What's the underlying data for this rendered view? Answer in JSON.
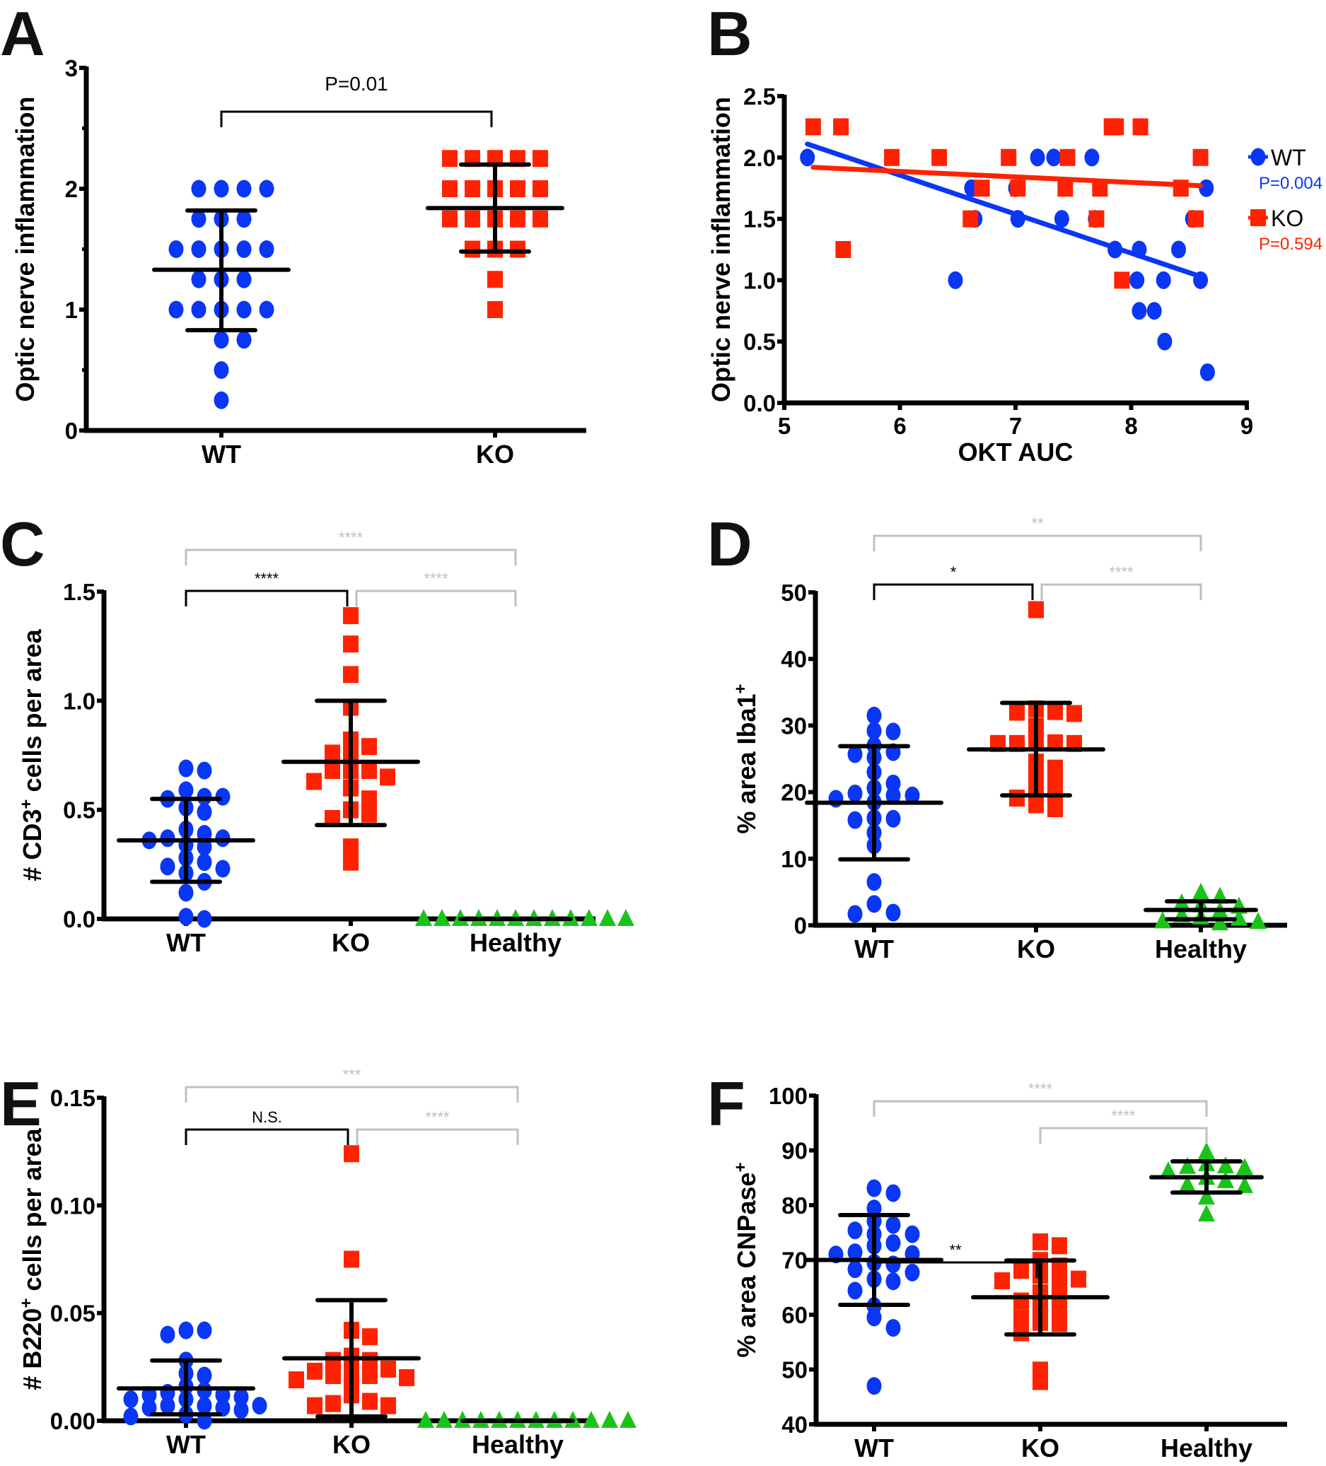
{
  "colors": {
    "wt": "#0a36f5",
    "ko": "#ff2200",
    "healthy": "#19c419",
    "bar": "#000000",
    "sig_dark": "#000000",
    "sig_light": "#c0c0c0"
  },
  "chart_data": [
    {
      "id": "A",
      "panel_label": "A",
      "type": "scatter",
      "subtype": "dot-plot-mean-sd",
      "ylabel": "Optic nerve inflammation",
      "xlabel": "",
      "categories": [
        "WT",
        "KO"
      ],
      "ylim": [
        0,
        3
      ],
      "yticks": [
        0,
        1,
        2,
        3
      ],
      "ytick_labels": [
        "0",
        "1",
        "2",
        "3"
      ],
      "minor_yticks": [
        0.5,
        1.5,
        2.5
      ],
      "series": [
        {
          "name": "WT",
          "marker": "circle",
          "color_key": "wt",
          "mean": 1.33,
          "sd_low": 0.83,
          "sd_high": 1.82,
          "values": [
            2.0,
            2.0,
            2.0,
            2.0,
            1.75,
            1.75,
            1.75,
            1.5,
            1.5,
            1.5,
            1.5,
            1.5,
            1.25,
            1.25,
            1.25,
            1.0,
            1.0,
            1.0,
            1.0,
            1.0,
            0.75,
            0.75,
            0.5,
            0.25
          ]
        },
        {
          "name": "KO",
          "marker": "square",
          "color_key": "ko",
          "mean": 1.84,
          "sd_low": 1.48,
          "sd_high": 2.2,
          "values": [
            2.25,
            2.25,
            2.25,
            2.25,
            2.25,
            2.0,
            2.0,
            2.0,
            2.0,
            2.0,
            1.75,
            1.75,
            1.75,
            1.75,
            1.75,
            1.5,
            1.5,
            1.5,
            1.25,
            1.0
          ]
        }
      ],
      "comparisons": [
        {
          "from": 0,
          "to": 1,
          "label": "P=0.01",
          "style": "ptext",
          "level": 0
        }
      ]
    },
    {
      "id": "B",
      "panel_label": "B",
      "type": "scatter",
      "subtype": "scatter-with-regression",
      "ylabel": "Optic nerve inflammation",
      "xlabel": "OKT AUC",
      "xlim": [
        5,
        9
      ],
      "ylim": [
        0,
        2.5
      ],
      "xticks": [
        5,
        6,
        7,
        8,
        9
      ],
      "xtick_labels": [
        "5",
        "6",
        "7",
        "8",
        "9"
      ],
      "yticks": [
        0,
        0.5,
        1.0,
        1.5,
        2.0,
        2.5
      ],
      "ytick_labels": [
        "0.0",
        "0.5",
        "1.0",
        "1.5",
        "2.0",
        "2.5"
      ],
      "legend": {
        "placement": "right",
        "entries": [
          {
            "name": "WT",
            "p_value": "P=0.004",
            "color_key": "wt",
            "marker": "circle"
          },
          {
            "name": "KO",
            "p_value": "P=0.594",
            "color_key": "ko",
            "marker": "square"
          }
        ]
      },
      "series": [
        {
          "name": "WT",
          "marker": "circle",
          "color_key": "wt",
          "x": [
            5.2,
            6.62,
            6.65,
            6.48,
            7.0,
            7.02,
            7.19,
            7.33,
            7.4,
            7.66,
            7.69,
            7.86,
            8.07,
            8.05,
            8.07,
            8.2,
            8.28,
            8.29,
            8.41,
            8.53,
            8.6,
            8.65,
            8.66
          ],
          "y": [
            2.0,
            1.75,
            1.5,
            1.0,
            1.75,
            1.5,
            2.0,
            2.0,
            1.5,
            2.0,
            1.5,
            1.25,
            1.25,
            1.0,
            0.75,
            0.75,
            1.0,
            0.5,
            1.25,
            1.5,
            1.0,
            1.75,
            0.25
          ],
          "fit": {
            "x": [
              5.2,
              8.6
            ],
            "y": [
              2.11,
              1.03
            ]
          }
        },
        {
          "name": "KO",
          "marker": "square",
          "color_key": "ko",
          "x": [
            5.25,
            5.49,
            5.51,
            5.93,
            6.34,
            6.61,
            6.71,
            6.94,
            7.02,
            7.45,
            7.43,
            7.7,
            7.73,
            7.83,
            7.87,
            7.92,
            8.08,
            8.43,
            8.56,
            8.6
          ],
          "y": [
            2.25,
            2.25,
            1.25,
            2.0,
            2.0,
            1.5,
            1.75,
            2.0,
            1.75,
            2.0,
            1.75,
            1.5,
            1.75,
            2.25,
            2.25,
            1.0,
            2.25,
            1.75,
            1.5,
            2.0
          ],
          "fit": {
            "x": [
              5.25,
              8.6
            ],
            "y": [
              1.92,
              1.77
            ]
          }
        }
      ]
    },
    {
      "id": "C",
      "panel_label": "C",
      "type": "scatter",
      "subtype": "dot-plot-mean-sd",
      "ylabel_main": "# CD3",
      "ylabel_sup": "+",
      "ylabel_rest": " cells per area",
      "categories": [
        "WT",
        "KO",
        "Healthy"
      ],
      "ylim": [
        0,
        1.5
      ],
      "yticks": [
        0,
        0.5,
        1.0,
        1.5
      ],
      "ytick_labels": [
        "0.0",
        "0.5",
        "1.0",
        "1.5"
      ],
      "series": [
        {
          "name": "WT",
          "marker": "circle",
          "color_key": "wt",
          "mean": 0.36,
          "sd_low": 0.17,
          "sd_high": 0.55,
          "values": [
            0.69,
            0.68,
            0.59,
            0.56,
            0.55,
            0.56,
            0.51,
            0.49,
            0.41,
            0.39,
            0.37,
            0.37,
            0.36,
            0.34,
            0.33,
            0.28,
            0.26,
            0.24,
            0.23,
            0.21,
            0.17,
            0.12,
            0.01,
            0.0
          ]
        },
        {
          "name": "KO",
          "marker": "square",
          "color_key": "ko",
          "mean": 0.72,
          "sd_low": 0.43,
          "sd_high": 1.0,
          "values": [
            1.39,
            1.26,
            1.12,
            0.97,
            0.82,
            0.79,
            0.76,
            0.76,
            0.68,
            0.68,
            0.68,
            0.65,
            0.63,
            0.6,
            0.55,
            0.5,
            0.48,
            0.46,
            0.33,
            0.26
          ]
        },
        {
          "name": "Healthy",
          "marker": "triangle",
          "color_key": "healthy",
          "mean": 0.0,
          "sd_low": 0.0,
          "sd_high": 0.0,
          "values": [
            0,
            0,
            0,
            0,
            0,
            0,
            0,
            0,
            0,
            0,
            0,
            0
          ]
        }
      ],
      "comparisons": [
        {
          "from": 0,
          "to": 1,
          "label": "****",
          "style": "dark",
          "level": 0
        },
        {
          "from": 1,
          "to": 2,
          "label": "****",
          "style": "light",
          "level": 0
        },
        {
          "from": 0,
          "to": 2,
          "label": "****",
          "style": "light",
          "level": 1
        }
      ]
    },
    {
      "id": "D",
      "panel_label": "D",
      "type": "scatter",
      "subtype": "dot-plot-mean-sd",
      "ylabel_main": "% area Iba1",
      "ylabel_sup": "+",
      "ylabel_rest": "",
      "categories": [
        "WT",
        "KO",
        "Healthy"
      ],
      "ylim": [
        0,
        50
      ],
      "yticks": [
        0,
        10,
        20,
        30,
        40,
        50
      ],
      "ytick_labels": [
        "0",
        "10",
        "20",
        "30",
        "40",
        "50"
      ],
      "series": [
        {
          "name": "WT",
          "marker": "circle",
          "color_key": "wt",
          "mean": 18.4,
          "sd_low": 9.9,
          "sd_high": 26.9,
          "values": [
            31.5,
            29.2,
            29.1,
            27.0,
            26.0,
            25.7,
            25.2,
            23.0,
            21.3,
            20.6,
            19.8,
            19.5,
            19.5,
            19.0,
            18.5,
            16.1,
            16.0,
            15.8,
            13.9,
            12.0,
            6.5,
            3.2,
            1.9,
            1.7
          ]
        },
        {
          "name": "KO",
          "marker": "square",
          "color_key": "ko",
          "mean": 26.4,
          "sd_low": 19.5,
          "sd_high": 33.4,
          "values": [
            47.4,
            32.5,
            32.1,
            32.0,
            31.8,
            29.9,
            27.4,
            27.4,
            27.3,
            27.3,
            27.3,
            24.5,
            23.6,
            22.0,
            21.5,
            20.1,
            19.3,
            19.1,
            18.1,
            17.5
          ]
        },
        {
          "name": "Healthy",
          "marker": "triangle",
          "color_key": "healthy",
          "mean": 2.3,
          "sd_low": 0.9,
          "sd_high": 3.6,
          "values": [
            4.9,
            4.3,
            3.3,
            3.0,
            2.8,
            2.1,
            1.5,
            1.2,
            1.0,
            0.6,
            0.5,
            0.3
          ]
        }
      ],
      "comparisons": [
        {
          "from": 0,
          "to": 1,
          "label": "*",
          "style": "dark",
          "level": 0
        },
        {
          "from": 1,
          "to": 2,
          "label": "****",
          "style": "light",
          "level": 0
        },
        {
          "from": 0,
          "to": 2,
          "label": "**",
          "style": "light",
          "level": 1
        }
      ]
    },
    {
      "id": "E",
      "panel_label": "E",
      "type": "scatter",
      "subtype": "dot-plot-mean-sd",
      "ylabel_main": "# B220",
      "ylabel_sup": "+",
      "ylabel_rest": " cells per area",
      "categories": [
        "WT",
        "KO",
        "Healthy"
      ],
      "ylim": [
        0,
        0.15
      ],
      "yticks": [
        0,
        0.05,
        0.1,
        0.15
      ],
      "ytick_labels": [
        "0.00",
        "0.05",
        "0.10",
        "0.15"
      ],
      "series": [
        {
          "name": "WT",
          "marker": "circle",
          "color_key": "wt",
          "mean": 0.015,
          "sd_low": 0.003,
          "sd_high": 0.028,
          "values": [
            0.042,
            0.042,
            0.04,
            0.028,
            0.022,
            0.021,
            0.016,
            0.014,
            0.013,
            0.012,
            0.012,
            0.011,
            0.01,
            0.01,
            0.007,
            0.007,
            0.007,
            0.006,
            0.006,
            0.005,
            0.003,
            0.002,
            0.0
          ]
        },
        {
          "name": "KO",
          "marker": "square",
          "color_key": "ko",
          "mean": 0.029,
          "sd_low": 0.002,
          "sd_high": 0.056,
          "values": [
            0.124,
            0.075,
            0.042,
            0.039,
            0.03,
            0.028,
            0.028,
            0.024,
            0.024,
            0.023,
            0.021,
            0.021,
            0.02,
            0.019,
            0.018,
            0.012,
            0.009,
            0.008,
            0.007,
            0.007
          ]
        },
        {
          "name": "Healthy",
          "marker": "triangle",
          "color_key": "healthy",
          "mean": 0.0,
          "sd_low": 0.0,
          "sd_high": 0.0,
          "values": [
            0,
            0,
            0,
            0,
            0,
            0,
            0,
            0,
            0,
            0,
            0,
            0
          ]
        }
      ],
      "comparisons": [
        {
          "from": 0,
          "to": 1,
          "label": "N.S.",
          "style": "dark",
          "level": 0
        },
        {
          "from": 1,
          "to": 2,
          "label": "****",
          "style": "light",
          "level": 0
        },
        {
          "from": 0,
          "to": 2,
          "label": "***",
          "style": "light",
          "level": 1
        }
      ]
    },
    {
      "id": "F",
      "panel_label": "F",
      "type": "scatter",
      "subtype": "dot-plot-mean-sd",
      "ylabel_main": "% area CNPase",
      "ylabel_sup": "+",
      "ylabel_rest": "",
      "categories": [
        "WT",
        "KO",
        "Healthy"
      ],
      "ylim": [
        40,
        100
      ],
      "yticks": [
        40,
        50,
        60,
        70,
        80,
        90,
        100
      ],
      "ytick_labels": [
        "40",
        "50",
        "60",
        "70",
        "80",
        "90",
        "100"
      ],
      "series": [
        {
          "name": "WT",
          "marker": "circle",
          "color_key": "wt",
          "mean": 70.0,
          "sd_low": 61.8,
          "sd_high": 78.2,
          "values": [
            83.1,
            82.2,
            79.4,
            77.1,
            76.4,
            75.4,
            74.7,
            74.7,
            73.1,
            72.6,
            71.4,
            71.1,
            71.0,
            69.5,
            69.2,
            68.3,
            67.7,
            66.5,
            66.1,
            64.4,
            61.6,
            59.5,
            57.6,
            47.0
          ]
        },
        {
          "name": "KO",
          "marker": "square",
          "color_key": "ko",
          "mean": 63.2,
          "sd_low": 56.4,
          "sd_high": 69.9,
          "values": [
            73.3,
            72.6,
            69.9,
            68.9,
            68.1,
            67.2,
            66.5,
            66.5,
            66.2,
            64.0,
            63.6,
            62.5,
            61.1,
            60.6,
            59.4,
            58.6,
            58.4,
            56.7,
            49.9,
            47.8
          ]
        },
        {
          "name": "Healthy",
          "marker": "triangle",
          "color_key": "healthy",
          "mean": 85.1,
          "sd_low": 82.3,
          "sd_high": 88.0,
          "values": [
            89.7,
            87.5,
            87.1,
            87.0,
            86.8,
            86.2,
            85.0,
            84.4,
            83.7,
            83.5,
            81.4,
            78.3
          ]
        }
      ],
      "comparisons": [
        {
          "from": 0,
          "to": 1,
          "label": "**",
          "style": "dark",
          "level": 0
        },
        {
          "from": 1,
          "to": 2,
          "label": "****",
          "style": "light",
          "level": 1
        },
        {
          "from": 0,
          "to": 2,
          "label": "****",
          "style": "light",
          "level": 2
        }
      ]
    }
  ]
}
